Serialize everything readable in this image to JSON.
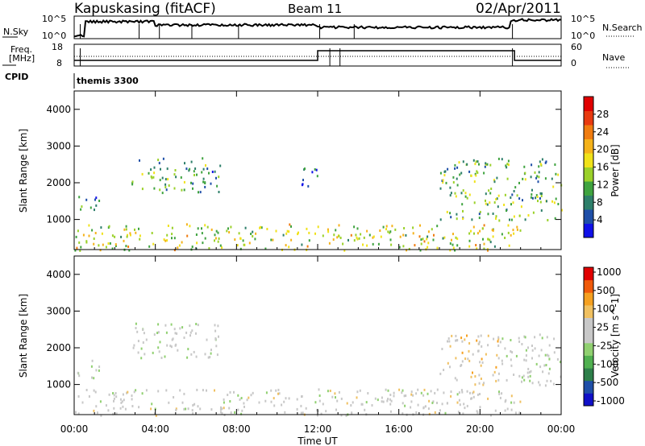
{
  "header": {
    "station": "Kapuskasing (fitACF)",
    "beam": "Beam 11",
    "date": "02/Apr/2011"
  },
  "top_strip": {
    "left_label": "N.Sky",
    "left_ticks": [
      "10^5",
      "10^0"
    ],
    "right_label": "N.Search",
    "right_ticks": [
      "10^5",
      "10^0"
    ]
  },
  "freq_strip": {
    "left_label_1": "Freq.",
    "left_label_2": "[MHz]",
    "left_ticks": [
      "18",
      "8"
    ],
    "right_label": "Nave",
    "right_ticks": [
      "60",
      "0"
    ],
    "cpid_label": "CPID",
    "mode_label": "themis 3300"
  },
  "colors": {
    "power": [
      "#1010e8",
      "#1f4fa8",
      "#2e7f6a",
      "#3fa33f",
      "#9bd12a",
      "#f0e21a",
      "#f5b21a",
      "#f07c10",
      "#e83a10",
      "#e00000"
    ],
    "velocity": [
      "#e00000",
      "#f05a0a",
      "#f5a020",
      "#f0c060",
      "#c8c8c8",
      "#c8c8c8",
      "#90d070",
      "#50b050",
      "#2e7f4a",
      "#1f4fa8",
      "#1010c8"
    ]
  },
  "chart_data": [
    {
      "type": "heatmap",
      "title": "",
      "xlabel": "",
      "ylabel": "Slant Range [km]",
      "xlim": [
        "00:00",
        "24:00"
      ],
      "ylim": [
        180,
        4500
      ],
      "x_ticks": [
        "00:00",
        "04:00",
        "08:00",
        "12:00",
        "16:00",
        "20:00",
        "00:00"
      ],
      "y_ticks": [
        "1000",
        "2000",
        "3000",
        "4000"
      ],
      "colorbar": {
        "label": "Power [dB]",
        "range": [
          0,
          32
        ],
        "ticks": [
          "4",
          "8",
          "12",
          "16",
          "20",
          "24",
          "28"
        ]
      },
      "scatter_regions": [
        {
          "t_start": 0.0,
          "t_end": 1.2,
          "range_min": 1200,
          "range_max": 1700,
          "typical_db": 8
        },
        {
          "t_start": 2.8,
          "t_end": 7.2,
          "range_min": 1750,
          "range_max": 2700,
          "typical_db": 10
        },
        {
          "t_start": 11.0,
          "t_end": 12.0,
          "range_min": 1900,
          "range_max": 2500,
          "typical_db": 6
        },
        {
          "t_start": 0.0,
          "t_end": 22.0,
          "range_min": 180,
          "range_max": 900,
          "typical_db": 16
        },
        {
          "t_start": 18.0,
          "t_end": 24.0,
          "range_min": 1000,
          "range_max": 2700,
          "typical_db": 12
        }
      ]
    },
    {
      "type": "heatmap",
      "title": "",
      "xlabel": "Time UT",
      "ylabel": "Slant Range [km]",
      "xlim": [
        "00:00",
        "24:00"
      ],
      "ylim": [
        180,
        4500
      ],
      "x_ticks": [
        "00:00",
        "04:00",
        "08:00",
        "12:00",
        "16:00",
        "20:00",
        "00:00"
      ],
      "y_ticks": [
        "1000",
        "2000",
        "3000",
        "4000"
      ],
      "colorbar": {
        "label": "Velocity [m s^-1]",
        "range": [
          -1000,
          1000
        ],
        "ticks": [
          "1000",
          "500",
          "100",
          "25",
          "-25",
          "-100",
          "-500",
          "-1000"
        ]
      },
      "scatter_regions": [
        {
          "t_start": 0.0,
          "t_end": 1.2,
          "range_min": 1200,
          "range_max": 1700,
          "typical_velocity": 0
        },
        {
          "t_start": 2.8,
          "t_end": 7.2,
          "range_min": 1750,
          "range_max": 2700,
          "typical_velocity": 0
        },
        {
          "t_start": 0.0,
          "t_end": 22.0,
          "range_min": 180,
          "range_max": 900,
          "typical_velocity": -100
        },
        {
          "t_start": 18.0,
          "t_end": 21.0,
          "range_min": 1000,
          "range_max": 2400,
          "typical_velocity": -300
        },
        {
          "t_start": 21.0,
          "t_end": 24.0,
          "range_min": 1000,
          "range_max": 2400,
          "typical_velocity": 0
        }
      ]
    }
  ]
}
